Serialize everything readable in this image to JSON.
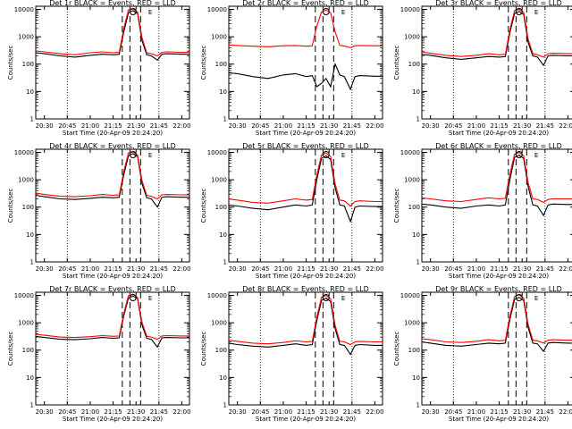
{
  "chart_data": [
    {
      "type": "line",
      "title": "Det 1r BLACK = Events, RED = LLD",
      "ylabel": "Counts/sec",
      "xlabel": "Start Time (20-Apr-09 20:24:20)",
      "x_ticks": [
        "20:30",
        "20:45",
        "21:00",
        "21:15",
        "21:30",
        "21:45",
        "22:00"
      ],
      "y_ticks": [
        "1",
        "10",
        "100",
        "1000",
        "10000"
      ],
      "xlim": [
        "20:24:20",
        "22:05"
      ],
      "ylim": [
        1,
        13000
      ],
      "y_scale": "log",
      "grid": "vertical dotted at 20:45, 21:45",
      "markers": [
        "21:21",
        "21:26",
        "21:33"
      ],
      "annotations": [
        "O",
        "E"
      ],
      "x": [
        "20:24",
        "20:30",
        "20:40",
        "20:50",
        "21:00",
        "21:08",
        "21:15",
        "21:19",
        "21:22",
        "21:25",
        "21:28",
        "21:31",
        "21:34",
        "21:37",
        "21:40",
        "21:44",
        "21:47",
        "21:50",
        "22:00",
        "22:05"
      ],
      "series": [
        {
          "name": "BLACK = Events",
          "color": "#000000",
          "values": [
            260,
            240,
            200,
            180,
            210,
            230,
            220,
            230,
            1500,
            7500,
            9000,
            7000,
            700,
            220,
            200,
            140,
            230,
            240,
            230,
            230
          ]
        },
        {
          "name": "RED = LLD",
          "color": "#ff0000",
          "values": [
            300,
            280,
            240,
            220,
            260,
            280,
            260,
            270,
            2000,
            9500,
            10500,
            8000,
            900,
            260,
            240,
            200,
            270,
            280,
            270,
            270
          ]
        }
      ]
    },
    {
      "type": "line",
      "title": "Det 2r BLACK = Events, RED = LLD",
      "ylabel": "Counts/sec",
      "xlabel": "Start Time (20-Apr-09 20:24:20)",
      "x_ticks": [
        "20:30",
        "20:45",
        "21:00",
        "21:15",
        "21:30",
        "21:45",
        "22:00"
      ],
      "y_ticks": [
        "1",
        "10",
        "100",
        "1000",
        "10000"
      ],
      "xlim": [
        "20:24:20",
        "22:05"
      ],
      "ylim": [
        1,
        13000
      ],
      "y_scale": "log",
      "grid": "vertical dotted at 20:45, 21:45",
      "markers": [
        "21:21",
        "21:26",
        "21:33"
      ],
      "annotations": [
        "O",
        "E"
      ],
      "x": [
        "20:24",
        "20:30",
        "20:40",
        "20:50",
        "21:00",
        "21:08",
        "21:15",
        "21:19",
        "21:22",
        "21:25",
        "21:28",
        "21:31",
        "21:34",
        "21:37",
        "21:40",
        "21:44",
        "21:47",
        "21:50",
        "22:00",
        "22:05"
      ],
      "series": [
        {
          "name": "BLACK = Events",
          "color": "#000000",
          "values": [
            48,
            45,
            35,
            30,
            40,
            45,
            35,
            38,
            15,
            20,
            30,
            15,
            100,
            40,
            35,
            12,
            35,
            38,
            36,
            36
          ]
        },
        {
          "name": "RED = LLD",
          "color": "#ff0000",
          "values": [
            500,
            480,
            450,
            430,
            470,
            480,
            450,
            470,
            2500,
            8000,
            9500,
            7500,
            1500,
            480,
            460,
            400,
            470,
            480,
            470,
            470
          ]
        }
      ]
    },
    {
      "type": "line",
      "title": "Det 3r BLACK = Events, RED = LLD",
      "ylabel": "Counts/sec",
      "xlabel": "Start Time (20-Apr-09 20:24:20)",
      "x_ticks": [
        "20:30",
        "20:45",
        "21:00",
        "21:15",
        "21:30",
        "21:45",
        "22:00"
      ],
      "y_ticks": [
        "1",
        "10",
        "100",
        "1000",
        "10000"
      ],
      "xlim": [
        "20:24:20",
        "22:05"
      ],
      "ylim": [
        1,
        13000
      ],
      "y_scale": "log",
      "grid": "vertical dotted at 20:45, 21:45",
      "markers": [
        "21:21",
        "21:26",
        "21:33"
      ],
      "annotations": [
        "O",
        "E"
      ],
      "x": [
        "20:24",
        "20:30",
        "20:40",
        "20:50",
        "21:00",
        "21:08",
        "21:15",
        "21:19",
        "21:22",
        "21:25",
        "21:28",
        "21:31",
        "21:34",
        "21:37",
        "21:40",
        "21:44",
        "21:47",
        "21:50",
        "22:00",
        "22:05"
      ],
      "series": [
        {
          "name": "BLACK = Events",
          "color": "#000000",
          "values": [
            230,
            210,
            170,
            150,
            170,
            190,
            180,
            190,
            1400,
            7000,
            8500,
            6500,
            600,
            200,
            180,
            90,
            200,
            210,
            200,
            200
          ]
        },
        {
          "name": "RED = LLD",
          "color": "#ff0000",
          "values": [
            280,
            250,
            210,
            190,
            210,
            240,
            220,
            230,
            1800,
            9000,
            10000,
            7800,
            800,
            240,
            220,
            180,
            240,
            250,
            240,
            240
          ]
        }
      ]
    },
    {
      "type": "line",
      "title": "Det 4r BLACK = Events, RED = LLD",
      "ylabel": "Counts/sec",
      "xlabel": "Start Time (20-Apr-09 20:24:20)",
      "x_ticks": [
        "20:30",
        "20:45",
        "21:00",
        "21:15",
        "21:30",
        "21:45",
        "22:00"
      ],
      "y_ticks": [
        "1",
        "10",
        "100",
        "1000",
        "10000"
      ],
      "xlim": [
        "20:24:20",
        "22:05"
      ],
      "ylim": [
        1,
        13000
      ],
      "y_scale": "log",
      "grid": "vertical dotted at 20:45, 21:45",
      "markers": [
        "21:21",
        "21:26",
        "21:33"
      ],
      "annotations": [
        "O",
        "E"
      ],
      "x": [
        "20:24",
        "20:30",
        "20:40",
        "20:50",
        "21:00",
        "21:08",
        "21:15",
        "21:19",
        "21:22",
        "21:25",
        "21:28",
        "21:31",
        "21:34",
        "21:37",
        "21:40",
        "21:44",
        "21:47",
        "21:50",
        "22:00",
        "22:05"
      ],
      "series": [
        {
          "name": "BLACK = Events",
          "color": "#000000",
          "values": [
            270,
            240,
            200,
            190,
            210,
            230,
            220,
            230,
            1500,
            7500,
            9000,
            7000,
            700,
            220,
            200,
            100,
            230,
            240,
            230,
            230
          ]
        },
        {
          "name": "RED = LLD",
          "color": "#ff0000",
          "values": [
            330,
            290,
            250,
            240,
            260,
            290,
            270,
            280,
            2000,
            9500,
            10500,
            8000,
            900,
            270,
            250,
            200,
            280,
            290,
            280,
            280
          ]
        }
      ]
    },
    {
      "type": "line",
      "title": "Det 5r BLACK = Events, RED = LLD",
      "ylabel": "Counts/sec",
      "xlabel": "Start Time (20-Apr-09 20:24:20)",
      "x_ticks": [
        "20:30",
        "20:45",
        "21:00",
        "21:15",
        "21:30",
        "21:45",
        "22:00"
      ],
      "y_ticks": [
        "1",
        "10",
        "100",
        "1000",
        "10000"
      ],
      "xlim": [
        "20:24:20",
        "22:05"
      ],
      "ylim": [
        1,
        13000
      ],
      "y_scale": "log",
      "grid": "vertical dotted at 20:45, 21:45",
      "markers": [
        "21:21",
        "21:26",
        "21:33"
      ],
      "annotations": [
        "O",
        "E"
      ],
      "x": [
        "20:24",
        "20:30",
        "20:40",
        "20:50",
        "21:00",
        "21:08",
        "21:15",
        "21:19",
        "21:22",
        "21:25",
        "21:28",
        "21:31",
        "21:34",
        "21:37",
        "21:40",
        "21:44",
        "21:47",
        "21:50",
        "22:00",
        "22:05"
      ],
      "series": [
        {
          "name": "BLACK = Events",
          "color": "#000000",
          "values": [
            120,
            110,
            90,
            80,
            100,
            120,
            110,
            120,
            1000,
            6000,
            7500,
            5500,
            500,
            120,
            110,
            30,
            100,
            110,
            105,
            105
          ]
        },
        {
          "name": "RED = LLD",
          "color": "#ff0000",
          "values": [
            200,
            180,
            150,
            140,
            170,
            200,
            180,
            190,
            1500,
            8000,
            9500,
            7000,
            700,
            180,
            170,
            110,
            160,
            170,
            160,
            160
          ]
        }
      ]
    },
    {
      "type": "line",
      "title": "Det 6r BLACK = Events, RED = LLD",
      "ylabel": "Counts/sec",
      "xlabel": "Start Time (20-Apr-09 20:24:20)",
      "x_ticks": [
        "20:30",
        "20:45",
        "21:00",
        "21:15",
        "21:30",
        "21:45",
        "22:00"
      ],
      "y_ticks": [
        "1",
        "10",
        "100",
        "1000",
        "10000"
      ],
      "xlim": [
        "20:24:20",
        "22:05"
      ],
      "ylim": [
        1,
        13000
      ],
      "y_scale": "log",
      "grid": "vertical dotted at 20:45, 21:45",
      "markers": [
        "21:21",
        "21:26",
        "21:33"
      ],
      "annotations": [
        "O",
        "E"
      ],
      "x": [
        "20:24",
        "20:30",
        "20:40",
        "20:50",
        "21:00",
        "21:08",
        "21:15",
        "21:19",
        "21:22",
        "21:25",
        "21:28",
        "21:31",
        "21:34",
        "21:37",
        "21:40",
        "21:44",
        "21:47",
        "21:50",
        "22:00",
        "22:05"
      ],
      "series": [
        {
          "name": "BLACK = Events",
          "color": "#000000",
          "values": [
            130,
            120,
            100,
            90,
            110,
            120,
            110,
            120,
            1000,
            6500,
            8000,
            6000,
            550,
            120,
            110,
            50,
            120,
            130,
            125,
            125
          ]
        },
        {
          "name": "RED = LLD",
          "color": "#ff0000",
          "values": [
            220,
            200,
            170,
            160,
            190,
            220,
            200,
            210,
            1600,
            8500,
            10000,
            7500,
            750,
            200,
            190,
            150,
            190,
            200,
            200,
            200
          ]
        }
      ]
    },
    {
      "type": "line",
      "title": "Det 7r BLACK = Events, RED = LLD",
      "ylabel": "Counts/sec",
      "xlabel": "Start Time (20-Apr-09 20:24:20)",
      "x_ticks": [
        "20:30",
        "20:45",
        "21:00",
        "21:15",
        "21:30",
        "21:45",
        "22:00"
      ],
      "y_ticks": [
        "1",
        "10",
        "100",
        "1000",
        "10000"
      ],
      "xlim": [
        "20:24:20",
        "22:05"
      ],
      "ylim": [
        1,
        13000
      ],
      "y_scale": "log",
      "grid": "vertical dotted at 20:45, 21:45",
      "markers": [
        "21:21",
        "21:26",
        "21:33"
      ],
      "annotations": [
        "O",
        "E"
      ],
      "x": [
        "20:24",
        "20:30",
        "20:40",
        "20:50",
        "21:00",
        "21:08",
        "21:15",
        "21:19",
        "21:22",
        "21:25",
        "21:28",
        "21:31",
        "21:34",
        "21:37",
        "21:40",
        "21:44",
        "21:47",
        "21:50",
        "22:00",
        "22:05"
      ],
      "series": [
        {
          "name": "BLACK = Events",
          "color": "#000000",
          "values": [
            320,
            290,
            250,
            240,
            260,
            290,
            270,
            280,
            1800,
            8000,
            9500,
            7500,
            800,
            270,
            250,
            130,
            280,
            290,
            280,
            280
          ]
        },
        {
          "name": "RED = LLD",
          "color": "#ff0000",
          "values": [
            380,
            350,
            300,
            290,
            310,
            340,
            320,
            330,
            2200,
            9800,
            11000,
            8500,
            1000,
            320,
            300,
            250,
            330,
            340,
            330,
            330
          ]
        }
      ]
    },
    {
      "type": "line",
      "title": "Det 8r BLACK = Events, RED = LLD",
      "ylabel": "Counts/sec",
      "xlabel": "Start Time (20-Apr-09 20:24:20)",
      "x_ticks": [
        "20:30",
        "20:45",
        "21:00",
        "21:15",
        "21:30",
        "21:45",
        "22:00"
      ],
      "y_ticks": [
        "1",
        "10",
        "100",
        "1000",
        "10000"
      ],
      "xlim": [
        "20:24:20",
        "22:05"
      ],
      "ylim": [
        1,
        13000
      ],
      "y_scale": "log",
      "grid": "vertical dotted at 20:45, 21:45",
      "markers": [
        "21:21",
        "21:26",
        "21:33"
      ],
      "annotations": [
        "O",
        "E"
      ],
      "x": [
        "20:24",
        "20:30",
        "20:40",
        "20:50",
        "21:00",
        "21:08",
        "21:15",
        "21:19",
        "21:22",
        "21:25",
        "21:28",
        "21:31",
        "21:34",
        "21:37",
        "21:40",
        "21:44",
        "21:47",
        "21:50",
        "22:00",
        "22:05"
      ],
      "series": [
        {
          "name": "BLACK = Events",
          "color": "#000000",
          "values": [
            180,
            160,
            140,
            130,
            150,
            170,
            150,
            160,
            1200,
            6500,
            8000,
            6000,
            600,
            160,
            150,
            70,
            150,
            160,
            150,
            150
          ]
        },
        {
          "name": "RED = LLD",
          "color": "#ff0000",
          "values": [
            230,
            210,
            180,
            170,
            190,
            220,
            200,
            210,
            1600,
            8500,
            10000,
            7500,
            800,
            210,
            200,
            160,
            200,
            210,
            200,
            200
          ]
        }
      ]
    },
    {
      "type": "line",
      "title": "Det 9r BLACK = Events, RED = LLD",
      "ylabel": "Counts/sec",
      "xlabel": "Start Time (20-Apr-09 20:24:20)",
      "x_ticks": [
        "20:30",
        "20:45",
        "21:00",
        "21:15",
        "21:30",
        "21:45",
        "22:00"
      ],
      "y_ticks": [
        "1",
        "10",
        "100",
        "1000",
        "10000"
      ],
      "xlim": [
        "20:24:20",
        "22:05"
      ],
      "ylim": [
        1,
        13000
      ],
      "y_scale": "log",
      "grid": "vertical dotted at 20:45, 21:45",
      "markers": [
        "21:21",
        "21:26",
        "21:33"
      ],
      "annotations": [
        "O",
        "E"
      ],
      "x": [
        "20:24",
        "20:30",
        "20:40",
        "20:50",
        "21:00",
        "21:08",
        "21:15",
        "21:19",
        "21:22",
        "21:25",
        "21:28",
        "21:31",
        "21:34",
        "21:37",
        "21:40",
        "21:44",
        "21:47",
        "21:50",
        "22:00",
        "22:05"
      ],
      "series": [
        {
          "name": "BLACK = Events",
          "color": "#000000",
          "values": [
            200,
            180,
            150,
            140,
            160,
            180,
            170,
            180,
            1300,
            7000,
            8500,
            6500,
            650,
            180,
            170,
            90,
            180,
            190,
            180,
            180
          ]
        },
        {
          "name": "RED = LLD",
          "color": "#ff0000",
          "values": [
            260,
            240,
            200,
            190,
            210,
            240,
            220,
            230,
            1700,
            9000,
            10500,
            8000,
            850,
            230,
            220,
            180,
            230,
            240,
            230,
            230
          ]
        }
      ]
    }
  ]
}
